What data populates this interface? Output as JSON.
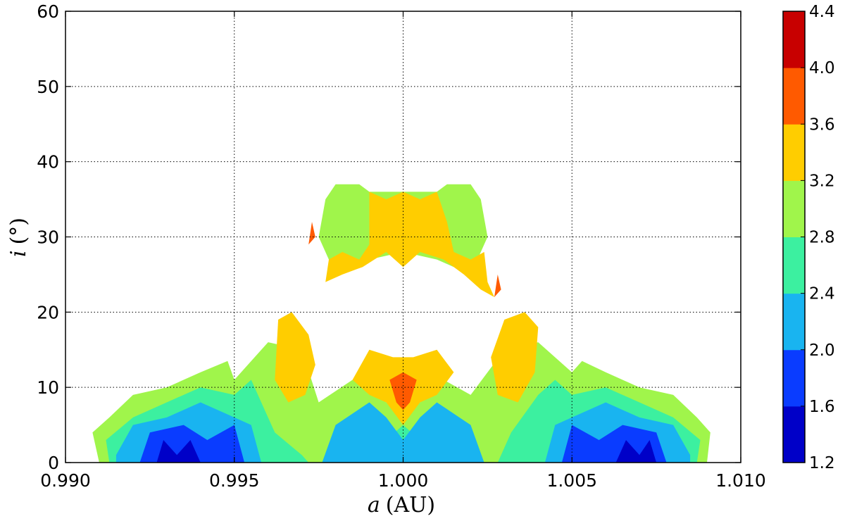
{
  "chart_data": {
    "type": "heatmap",
    "title": "",
    "xlabel": "a (AU)",
    "xlabel_var": "a",
    "xlabel_unit": "(AU)",
    "ylabel": "i (°)",
    "ylabel_var": "i",
    "ylabel_unit": "(°)",
    "xlim": [
      0.99,
      1.01
    ],
    "ylim": [
      0,
      60
    ],
    "xticks": [
      0.99,
      0.995,
      1.0,
      1.005,
      1.01
    ],
    "xtick_labels": [
      "0.990",
      "0.995",
      "1.000",
      "1.005",
      "1.010"
    ],
    "yticks": [
      0,
      10,
      20,
      30,
      40,
      50,
      60
    ],
    "ytick_labels": [
      "0",
      "10",
      "20",
      "30",
      "40",
      "50",
      "60"
    ],
    "grid": true,
    "colorbar": {
      "levels": [
        1.2,
        1.6,
        2.0,
        2.4,
        2.8,
        3.2,
        3.6,
        4.0,
        4.4
      ],
      "tick_labels": [
        "1.2",
        "1.6",
        "2.0",
        "2.4",
        "2.8",
        "3.2",
        "3.6",
        "4.0",
        "4.4"
      ],
      "colors": [
        "#0000c8",
        "#0a3cff",
        "#19b4f0",
        "#3cf0a0",
        "#a0f54b",
        "#ffcd00",
        "#ff5a00",
        "#c80000"
      ]
    },
    "regions": [
      {
        "level": 4,
        "polygon": [
          [
            0.9908,
            4
          ],
          [
            0.9913,
            6
          ],
          [
            0.992,
            9
          ],
          [
            0.993,
            10
          ],
          [
            0.994,
            12
          ],
          [
            0.9948,
            13.5
          ],
          [
            0.995,
            11
          ],
          [
            0.996,
            16
          ],
          [
            0.997,
            15
          ],
          [
            0.9975,
            8
          ],
          [
            0.9985,
            11
          ],
          [
            0.9995,
            8
          ],
          [
            1.0,
            7
          ],
          [
            1.0005,
            8
          ],
          [
            1.0012,
            11
          ],
          [
            1.002,
            9
          ],
          [
            1.003,
            15
          ],
          [
            1.004,
            16
          ],
          [
            1.005,
            12
          ],
          [
            1.0053,
            13.5
          ],
          [
            1.006,
            12
          ],
          [
            1.007,
            10
          ],
          [
            1.008,
            9
          ],
          [
            1.0087,
            6
          ],
          [
            1.0091,
            4
          ],
          [
            1.009,
            0
          ],
          [
            0.991,
            0
          ]
        ]
      },
      {
        "level": 3,
        "polygon": [
          [
            0.9912,
            3
          ],
          [
            0.992,
            6
          ],
          [
            0.993,
            8
          ],
          [
            0.994,
            10
          ],
          [
            0.995,
            9
          ],
          [
            0.9955,
            11
          ],
          [
            0.9962,
            4
          ],
          [
            0.997,
            1
          ],
          [
            0.9972,
            0
          ],
          [
            0.999,
            0
          ],
          [
            0.9995,
            3
          ],
          [
            1.0,
            5
          ],
          [
            1.0005,
            3
          ],
          [
            1.001,
            0
          ],
          [
            1.0028,
            0
          ],
          [
            1.0032,
            4
          ],
          [
            1.004,
            9
          ],
          [
            1.0045,
            11
          ],
          [
            1.005,
            9
          ],
          [
            1.006,
            10
          ],
          [
            1.007,
            8
          ],
          [
            1.008,
            6
          ],
          [
            1.0088,
            3
          ],
          [
            1.0087,
            0
          ],
          [
            0.9913,
            0
          ]
        ]
      },
      {
        "level": 2,
        "polygon": [
          [
            0.9915,
            1
          ],
          [
            0.992,
            5
          ],
          [
            0.993,
            6
          ],
          [
            0.994,
            8
          ],
          [
            0.995,
            6
          ],
          [
            0.9955,
            5
          ],
          [
            0.9958,
            0
          ],
          [
            0.9915,
            0
          ]
        ]
      },
      {
        "level": 2,
        "polygon": [
          [
            0.9976,
            0
          ],
          [
            0.998,
            5
          ],
          [
            0.999,
            8
          ],
          [
            0.9995,
            6
          ],
          [
            1.0,
            3
          ],
          [
            1.0005,
            6
          ],
          [
            1.001,
            8
          ],
          [
            1.002,
            5
          ],
          [
            1.0024,
            0
          ]
        ]
      },
      {
        "level": 2,
        "polygon": [
          [
            1.0042,
            0
          ],
          [
            1.0045,
            5
          ],
          [
            1.005,
            6
          ],
          [
            1.006,
            8
          ],
          [
            1.007,
            6
          ],
          [
            1.008,
            5
          ],
          [
            1.0085,
            1
          ],
          [
            1.0085,
            0
          ]
        ]
      },
      {
        "level": 1,
        "polygon": [
          [
            0.9922,
            0
          ],
          [
            0.9925,
            4
          ],
          [
            0.9935,
            5
          ],
          [
            0.9942,
            3
          ],
          [
            0.995,
            5
          ],
          [
            0.9953,
            0
          ]
        ]
      },
      {
        "level": 1,
        "polygon": [
          [
            1.0047,
            0
          ],
          [
            1.005,
            5
          ],
          [
            1.0058,
            3
          ],
          [
            1.0065,
            5
          ],
          [
            1.0075,
            4
          ],
          [
            1.0078,
            0
          ]
        ]
      },
      {
        "level": 0,
        "polygon": [
          [
            0.9927,
            0
          ],
          [
            0.9929,
            3
          ],
          [
            0.9933,
            1
          ],
          [
            0.9937,
            3
          ],
          [
            0.994,
            0
          ]
        ]
      },
      {
        "level": 0,
        "polygon": [
          [
            1.0063,
            0
          ],
          [
            1.0066,
            3
          ],
          [
            1.007,
            1
          ],
          [
            1.0073,
            3
          ],
          [
            1.0075,
            0
          ]
        ]
      },
      {
        "level": 5,
        "polygon": [
          [
            0.9962,
            11
          ],
          [
            0.9963,
            19
          ],
          [
            0.9967,
            20
          ],
          [
            0.9972,
            17
          ],
          [
            0.9974,
            13
          ],
          [
            0.9971,
            9
          ],
          [
            0.9966,
            8
          ]
        ]
      },
      {
        "level": 5,
        "polygon": [
          [
            1.0028,
            9
          ],
          [
            1.0026,
            14
          ],
          [
            1.003,
            19
          ],
          [
            1.0036,
            20
          ],
          [
            1.004,
            18
          ],
          [
            1.0039,
            12
          ],
          [
            1.0034,
            8
          ]
        ]
      },
      {
        "level": 5,
        "polygon": [
          [
            0.9985,
            11
          ],
          [
            0.999,
            15
          ],
          [
            0.9997,
            14
          ],
          [
            1.0003,
            14
          ],
          [
            1.001,
            15
          ],
          [
            1.0015,
            12
          ],
          [
            1.001,
            9
          ],
          [
            1.0005,
            8
          ],
          [
            1.0,
            5
          ],
          [
            0.9995,
            8
          ],
          [
            0.999,
            9
          ]
        ]
      },
      {
        "level": 6,
        "polygon": [
          [
            0.9996,
            11
          ],
          [
            1.0,
            12
          ],
          [
            1.0004,
            11
          ],
          [
            1.0002,
            8
          ],
          [
            1.0,
            7
          ],
          [
            0.9998,
            8
          ]
        ]
      },
      {
        "level": 4,
        "polygon": [
          [
            0.9975,
            30
          ],
          [
            0.9977,
            35
          ],
          [
            0.998,
            37
          ],
          [
            0.9987,
            37
          ],
          [
            0.999,
            36
          ],
          [
            1.001,
            36
          ],
          [
            1.0013,
            37
          ],
          [
            1.002,
            37
          ],
          [
            1.0023,
            35
          ],
          [
            1.0025,
            30
          ],
          [
            1.0022,
            27
          ],
          [
            1.0015,
            26
          ],
          [
            1.001,
            27
          ],
          [
            1.0,
            28
          ],
          [
            0.999,
            27
          ],
          [
            0.9985,
            26
          ],
          [
            0.9978,
            27
          ]
        ]
      },
      {
        "level": 5,
        "polygon": [
          [
            0.999,
            36
          ],
          [
            0.9995,
            35
          ],
          [
            1.0,
            36
          ],
          [
            1.0005,
            35
          ],
          [
            1.001,
            36
          ],
          [
            1.0013,
            32
          ],
          [
            1.0015,
            28
          ],
          [
            1.002,
            27
          ],
          [
            1.0024,
            28
          ],
          [
            1.0025,
            24
          ],
          [
            1.0027,
            22
          ],
          [
            1.0023,
            23
          ],
          [
            1.0018,
            25
          ],
          [
            1.0012,
            27
          ],
          [
            1.0005,
            28
          ],
          [
            1.0,
            26
          ],
          [
            0.9995,
            28
          ],
          [
            0.9988,
            26
          ],
          [
            0.9982,
            25
          ],
          [
            0.9977,
            24
          ],
          [
            0.9978,
            27
          ],
          [
            0.9982,
            28
          ],
          [
            0.9987,
            27
          ],
          [
            0.999,
            29
          ]
        ]
      },
      {
        "level": 6,
        "polygon": [
          [
            0.9972,
            29
          ],
          [
            0.9973,
            32
          ],
          [
            0.9974,
            30
          ]
        ]
      },
      {
        "level": 6,
        "polygon": [
          [
            1.0027,
            22
          ],
          [
            1.0029,
            23
          ],
          [
            1.0028,
            25
          ]
        ]
      }
    ]
  }
}
